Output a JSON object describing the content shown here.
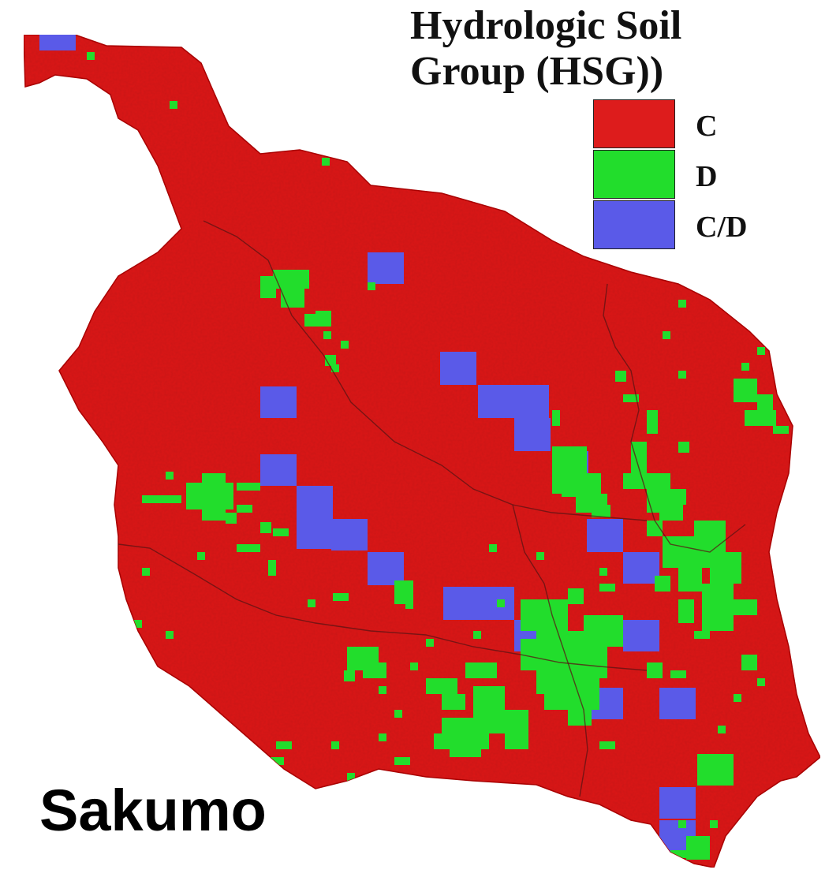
{
  "map": {
    "place_name": "Sakumo",
    "legend": {
      "title_line1": "Hydrologic Soil",
      "title_line2": "Group (HSG))",
      "entries": [
        {
          "label": "C",
          "color": "#dd1c1c"
        },
        {
          "label": "D",
          "color": "#22dd2c"
        },
        {
          "label": "C/D",
          "color": "#5a5ae8"
        }
      ]
    }
  }
}
